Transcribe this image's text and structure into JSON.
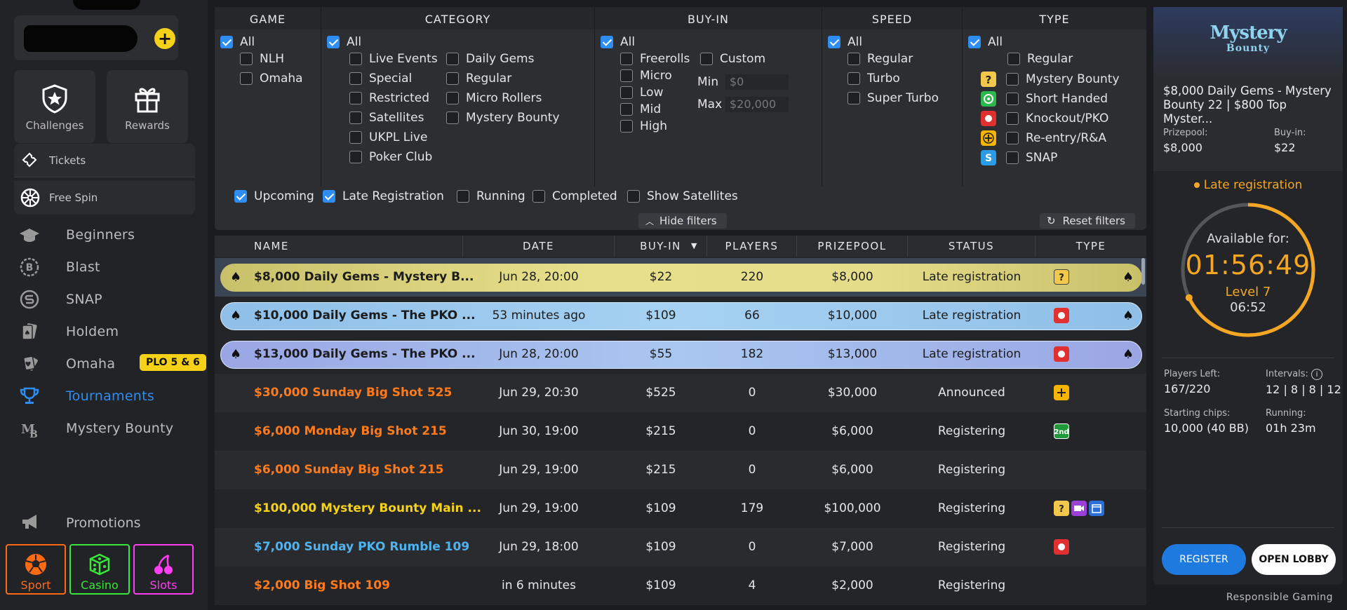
{
  "sidebar": {
    "challenges_label": "Challenges",
    "rewards_label": "Rewards",
    "tickets_label": "Tickets",
    "free_spin_label": "Free Spin",
    "nav": [
      {
        "label": "Beginners",
        "icon": "graduation-cap-icon"
      },
      {
        "label": "Blast",
        "icon": "blast-coin-icon"
      },
      {
        "label": "SNAP",
        "icon": "snap-icon"
      },
      {
        "label": "Holdem",
        "icon": "cards-icon"
      },
      {
        "label": "Omaha",
        "icon": "omaha-cards-icon"
      },
      {
        "label": "Tournaments",
        "icon": "trophy-icon"
      },
      {
        "label": "Mystery Bounty",
        "icon": "mystery-bounty-icon"
      }
    ],
    "omaha_badge": "PLO 5 & 6",
    "promotions_label": "Promotions",
    "products": [
      {
        "label": "Sport",
        "color": "#ff6a13"
      },
      {
        "label": "Casino",
        "color": "#39e639"
      },
      {
        "label": "Slots",
        "color": "#ff3df2"
      }
    ]
  },
  "filters": {
    "game": {
      "header": "GAME",
      "options": [
        "All",
        "NLH",
        "Omaha"
      ]
    },
    "category": {
      "header": "CATEGORY",
      "options": [
        "All",
        "Live Events",
        "Special",
        "Restricted",
        "Satellites",
        "UKPL Live",
        "Poker Club",
        "Daily Gems",
        "Regular",
        "Micro Rollers",
        "Mystery Bounty"
      ]
    },
    "buyin": {
      "header": "BUY-IN",
      "options": [
        "All",
        "Freerolls",
        "Micro",
        "Low",
        "Mid",
        "High",
        "Custom"
      ],
      "min_label": "Min",
      "min_placeholder": "$0",
      "max_label": "Max",
      "max_placeholder": "$20,000"
    },
    "speed": {
      "header": "SPEED",
      "options": [
        "All",
        "Regular",
        "Turbo",
        "Super Turbo"
      ]
    },
    "type": {
      "header": "TYPE",
      "options": [
        "All",
        "Regular",
        "Mystery Bounty",
        "Short Handed",
        "Knockout/PKO",
        "Re-entry/R&A",
        "SNAP"
      ]
    },
    "status": [
      "Upcoming",
      "Late Registration",
      "Running",
      "Completed",
      "Show Satellites"
    ],
    "hide_filters": "Hide filters",
    "reset_filters": "Reset filters"
  },
  "table": {
    "headers": [
      "NAME",
      "DATE",
      "BUY-IN",
      "PLAYERS",
      "PRIZEPOOL",
      "STATUS",
      "TYPE"
    ],
    "rows": [
      {
        "name": "$8,000 Daily Gems - Mystery B...",
        "date": "Jun 28, 20:00",
        "buyin": "$22",
        "players": "220",
        "prizepool": "$8,000",
        "status": "Late registration"
      },
      {
        "name": "$10,000 Daily Gems - The PKO ...",
        "date": "53 minutes ago",
        "buyin": "$109",
        "players": "66",
        "prizepool": "$10,000",
        "status": "Late registration"
      },
      {
        "name": "$13,000 Daily Gems - The PKO ...",
        "date": "Jun 28, 20:00",
        "buyin": "$55",
        "players": "182",
        "prizepool": "$13,000",
        "status": "Late registration"
      },
      {
        "name": "$30,000 Sunday Big Shot 525",
        "date": "Jun 29, 20:30",
        "buyin": "$525",
        "players": "0",
        "prizepool": "$30,000",
        "status": "Announced"
      },
      {
        "name": "$6,000 Monday Big Shot 215",
        "date": "Jun 30, 19:00",
        "buyin": "$215",
        "players": "0",
        "prizepool": "$6,000",
        "status": "Registering"
      },
      {
        "name": "$6,000 Sunday Big Shot 215",
        "date": "Jun 29, 19:00",
        "buyin": "$215",
        "players": "0",
        "prizepool": "$6,000",
        "status": "Registering"
      },
      {
        "name": "$100,000 Mystery Bounty Main ...",
        "date": "Jun 29, 19:00",
        "buyin": "$109",
        "players": "179",
        "prizepool": "$100,000",
        "status": "Registering"
      },
      {
        "name": "$7,000 Sunday PKO Rumble 109",
        "date": "Jun 29, 18:00",
        "buyin": "$109",
        "players": "0",
        "prizepool": "$7,000",
        "status": "Registering"
      },
      {
        "name": "$2,000 Big Shot 109",
        "date": "in 6 minutes",
        "buyin": "$109",
        "players": "4",
        "prizepool": "$2,000",
        "status": "Registering"
      }
    ]
  },
  "panel": {
    "logo_line1": "Mystery",
    "logo_line2": "Bounty",
    "title": "$8,000 Daily Gems - Mystery Bounty 22 | $800 Top Myster...",
    "prizepool_label": "Prizepool:",
    "prizepool_value": "$8,000",
    "buyin_label": "Buy-in:",
    "buyin_value": "$22",
    "late_reg": "Late registration",
    "available_label": "Available for:",
    "timer": "01:56:49",
    "level": "Level 7",
    "level_time": "06:52",
    "level_progress_fraction": 0.68,
    "players_left_label": "Players Left:",
    "players_left_value": "167/220",
    "intervals_label": "Intervals:",
    "intervals_value": "12 | 8 | 8 | 12",
    "starting_chips_label": "Starting chips:",
    "starting_chips_value": "10,000 (40 BB)",
    "running_label": "Running:",
    "running_value": "01h 23m",
    "register_label": "REGISTER",
    "open_lobby_label": "OPEN LOBBY"
  },
  "footer": {
    "responsible": "Responsible Gaming"
  },
  "colors": {
    "accent": "#2e8df2",
    "late": "#f5a623",
    "orange_name": "#ff7a1a",
    "yellow_name": "#f5d218",
    "blue_name": "#4fb3f0"
  }
}
